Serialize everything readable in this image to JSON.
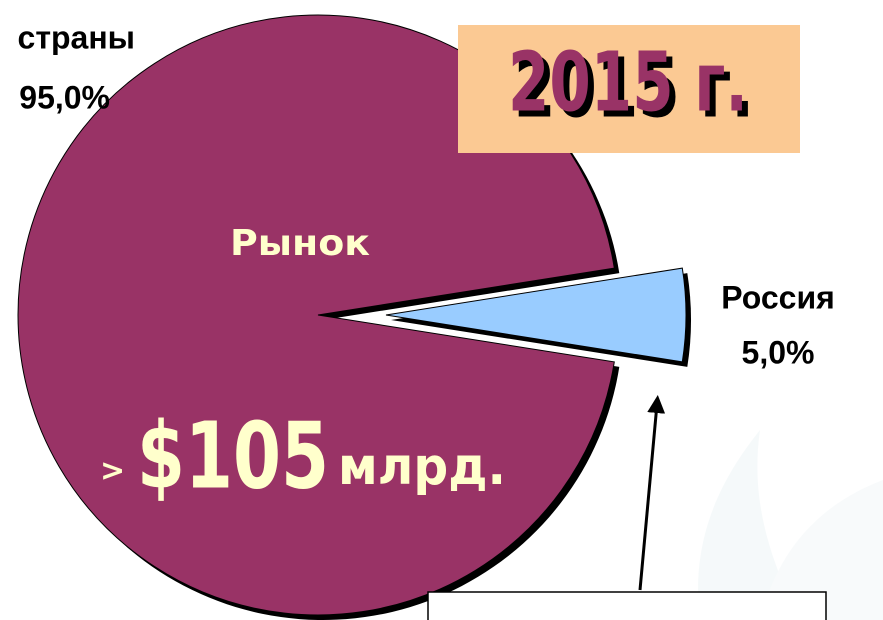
{
  "chart_data": {
    "type": "pie",
    "categories": [
      "страны",
      "Россия"
    ],
    "values": [
      95,
      5
    ],
    "value_labels": [
      "95,0%",
      "5,0%"
    ],
    "colors": [
      "#993366",
      "#99ccff"
    ],
    "year_label": "2015 г.",
    "market_label": "Рынок",
    "total_prefix": ">",
    "total_value": "$105",
    "total_unit": "млрд."
  }
}
